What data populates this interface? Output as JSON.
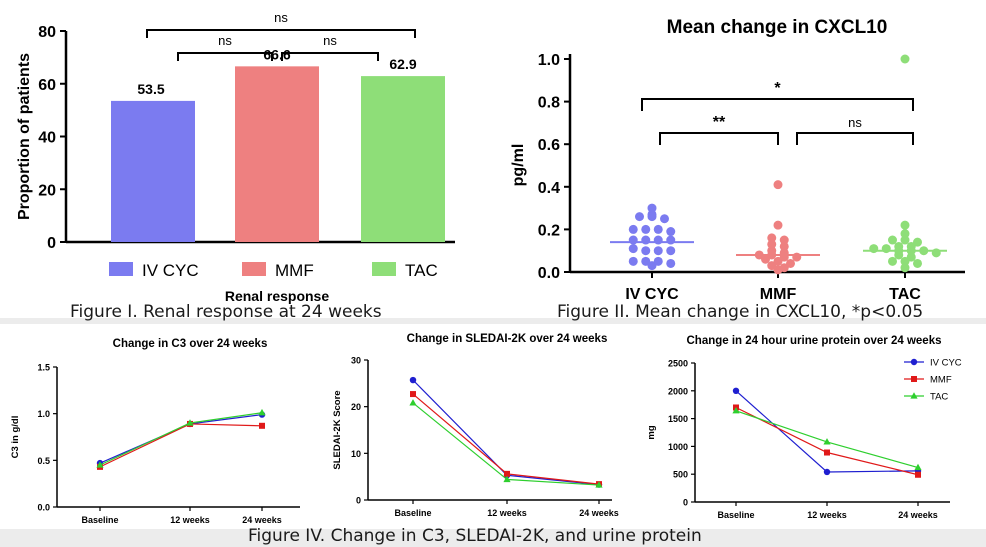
{
  "colors": {
    "ivcyc": "#7b7bf0",
    "mmf": "#ee8080",
    "tac": "#8ede78",
    "ivcyc_line": "#1f1fd0",
    "mmf_line": "#e01919",
    "tac_line": "#2ecf2e",
    "axis": "#000000"
  },
  "captions": {
    "fig1": "Figure I. Renal response at 24 weeks",
    "fig2": "Figure II. Mean change in CXCL10, *p<0.05",
    "fig4": "Figure IV. Change in C3, SLEDAI-2K, and urine protein"
  },
  "chart_data": [
    {
      "id": "renal",
      "type": "bar",
      "categories": [
        "IV CYC",
        "MMF",
        "TAC"
      ],
      "values": [
        53.5,
        66.6,
        62.9
      ],
      "value_labels": [
        "53.5",
        "66.6",
        "62.9"
      ],
      "title": "",
      "xlabel": "Renal response",
      "ylabel": "Proportion of patients",
      "ylim": [
        0,
        80
      ],
      "yticks": [
        0,
        20,
        40,
        60,
        80
      ],
      "legend": [
        "IV CYC",
        "MMF",
        "TAC"
      ],
      "significance": [
        {
          "from": 0,
          "to": 1,
          "label": "ns"
        },
        {
          "from": 1,
          "to": 2,
          "label": "ns"
        },
        {
          "from": 0,
          "to": 2,
          "label": "ns"
        }
      ]
    },
    {
      "id": "cxcl10",
      "type": "scatter",
      "title": "Mean change in CXCL10",
      "ylabel": "pg/ml",
      "xlabel": "",
      "categories": [
        "IV CYC",
        "MMF",
        "TAC"
      ],
      "ylim": [
        0,
        1.0
      ],
      "yticks": [
        "0.0",
        "0.2",
        "0.4",
        "0.6",
        "0.8",
        "1.0"
      ],
      "means": [
        0.14,
        0.08,
        0.1
      ],
      "points": [
        [
          0.3,
          0.27,
          0.26,
          0.26,
          0.25,
          0.2,
          0.2,
          0.2,
          0.19,
          0.15,
          0.15,
          0.15,
          0.15,
          0.11,
          0.1,
          0.1,
          0.1,
          0.05,
          0.05,
          0.05,
          0.04,
          0.03
        ],
        [
          0.41,
          0.22,
          0.16,
          0.15,
          0.13,
          0.12,
          0.1,
          0.09,
          0.08,
          0.08,
          0.07,
          0.07,
          0.06,
          0.05,
          0.04,
          0.03,
          0.02,
          0.01
        ],
        [
          1.0,
          0.22,
          0.18,
          0.15,
          0.15,
          0.14,
          0.12,
          0.12,
          0.11,
          0.11,
          0.1,
          0.1,
          0.1,
          0.09,
          0.08,
          0.07,
          0.05,
          0.05,
          0.04,
          0.02
        ]
      ],
      "significance": [
        {
          "from": 0,
          "to": 1,
          "label": "**"
        },
        {
          "from": 1,
          "to": 2,
          "label": "ns"
        },
        {
          "from": 0,
          "to": 2,
          "label": "*"
        }
      ]
    },
    {
      "id": "c3",
      "type": "line",
      "title": "Change in C3 over 24 weeks",
      "ylabel": "C3 in g/dl",
      "xlabel": "",
      "categories": [
        "Baseline",
        "12 weeks",
        "24 weeks"
      ],
      "ylim": [
        0,
        1.5
      ],
      "yticks": [
        "0.0",
        "0.5",
        "1.0",
        "1.5"
      ],
      "series": [
        {
          "name": "IV CYC",
          "values": [
            0.47,
            0.89,
            0.99
          ]
        },
        {
          "name": "MMF",
          "values": [
            0.43,
            0.89,
            0.87
          ]
        },
        {
          "name": "TAC",
          "values": [
            0.45,
            0.9,
            1.01
          ]
        }
      ]
    },
    {
      "id": "sledai",
      "type": "line",
      "title": "Change in SLEDAI-2K over 24 weeks",
      "ylabel": "SLEDAI-2K Score",
      "xlabel": "",
      "categories": [
        "Baseline",
        "12 weeks",
        "24 weeks"
      ],
      "ylim": [
        0,
        30
      ],
      "yticks": [
        "0",
        "10",
        "20",
        "30"
      ],
      "series": [
        {
          "name": "IV CYC",
          "values": [
            25.7,
            5.3,
            3.3
          ]
        },
        {
          "name": "MMF",
          "values": [
            22.7,
            5.6,
            3.4
          ]
        },
        {
          "name": "TAC",
          "values": [
            20.8,
            4.4,
            3.2
          ]
        }
      ]
    },
    {
      "id": "urine",
      "type": "line",
      "title": "Change in 24 hour urine protein over 24 weeks",
      "ylabel": "mg",
      "xlabel": "",
      "categories": [
        "Baseline",
        "12 weeks",
        "24 weeks"
      ],
      "ylim": [
        0,
        2500
      ],
      "yticks": [
        "0",
        "500",
        "1000",
        "1500",
        "2000",
        "2500"
      ],
      "legend": [
        "IV CYC",
        "MMF",
        "TAC"
      ],
      "series": [
        {
          "name": "IV CYC",
          "values": [
            2000,
            540,
            560
          ]
        },
        {
          "name": "MMF",
          "values": [
            1700,
            890,
            490
          ]
        },
        {
          "name": "TAC",
          "values": [
            1640,
            1080,
            620
          ]
        }
      ]
    }
  ]
}
